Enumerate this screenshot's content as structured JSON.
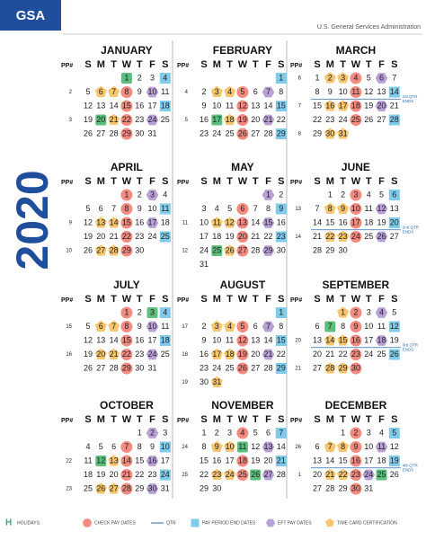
{
  "header": {
    "logo": "GSA",
    "agency": "U.S. General Services Administration",
    "year": "2020"
  },
  "column_headings": {
    "pp": "PP#",
    "weekdays": [
      "S",
      "M",
      "T",
      "W",
      "T",
      "F",
      "S"
    ]
  },
  "months": [
    {
      "name": "JANUARY",
      "weeks": [
        {
          "pp": null,
          "days": [
            null,
            null,
            null,
            1,
            2,
            3,
            4
          ]
        },
        {
          "pp": 2,
          "days": [
            5,
            6,
            7,
            8,
            9,
            10,
            11
          ]
        },
        {
          "pp": null,
          "days": [
            12,
            13,
            14,
            15,
            16,
            17,
            18
          ]
        },
        {
          "pp": 3,
          "days": [
            19,
            20,
            21,
            22,
            23,
            24,
            25
          ]
        },
        {
          "pp": null,
          "days": [
            26,
            27,
            28,
            29,
            30,
            31
          ]
        }
      ],
      "holidays": [
        1,
        20
      ],
      "check_pay": [
        8,
        15,
        22,
        29
      ],
      "pay_period_end": [
        4,
        18
      ],
      "eft_pay": [
        10,
        24
      ],
      "time_card": [
        6,
        7,
        21
      ]
    },
    {
      "name": "FEBRUARY",
      "weeks": [
        {
          "pp": null,
          "days": [
            null,
            null,
            null,
            null,
            null,
            null,
            1
          ]
        },
        {
          "pp": 4,
          "days": [
            2,
            3,
            4,
            5,
            6,
            7,
            8
          ]
        },
        {
          "pp": null,
          "days": [
            9,
            10,
            11,
            12,
            13,
            14,
            15
          ]
        },
        {
          "pp": 5,
          "days": [
            16,
            17,
            18,
            19,
            20,
            21,
            22
          ]
        },
        {
          "pp": null,
          "days": [
            23,
            24,
            25,
            26,
            27,
            28,
            29
          ]
        }
      ],
      "holidays": [
        17
      ],
      "check_pay": [
        5,
        12,
        19,
        26
      ],
      "pay_period_end": [
        1,
        15,
        29
      ],
      "eft_pay": [
        7,
        21
      ],
      "time_card": [
        3,
        4,
        18
      ]
    },
    {
      "name": "MARCH",
      "weeks": [
        {
          "pp": 6,
          "days": [
            1,
            2,
            3,
            4,
            5,
            6,
            7
          ]
        },
        {
          "pp": null,
          "days": [
            8,
            9,
            10,
            11,
            12,
            13,
            14
          ],
          "qtr": [
            "1st QTR",
            "ENDS"
          ]
        },
        {
          "pp": 7,
          "days": [
            15,
            16,
            17,
            18,
            19,
            20,
            21
          ]
        },
        {
          "pp": null,
          "days": [
            22,
            23,
            24,
            25,
            26,
            27,
            28
          ]
        },
        {
          "pp": 8,
          "days": [
            29,
            30,
            31
          ]
        }
      ],
      "holidays": [],
      "check_pay": [
        4,
        11,
        18,
        25
      ],
      "pay_period_end": [
        14,
        28
      ],
      "eft_pay": [
        6,
        20
      ],
      "time_card": [
        2,
        3,
        16,
        17,
        30,
        31
      ]
    },
    {
      "name": "APRIL",
      "weeks": [
        {
          "pp": null,
          "days": [
            null,
            null,
            null,
            1,
            2,
            3,
            4
          ]
        },
        {
          "pp": null,
          "days": [
            5,
            6,
            7,
            8,
            9,
            10,
            11
          ]
        },
        {
          "pp": 9,
          "days": [
            12,
            13,
            14,
            15,
            16,
            17,
            18
          ]
        },
        {
          "pp": null,
          "days": [
            19,
            20,
            21,
            22,
            23,
            24,
            25
          ]
        },
        {
          "pp": 10,
          "days": [
            26,
            27,
            28,
            29,
            30
          ]
        }
      ],
      "holidays": [],
      "check_pay": [
        1,
        8,
        15,
        22,
        29
      ],
      "pay_period_end": [
        11,
        25
      ],
      "eft_pay": [
        3,
        17
      ],
      "time_card": [
        13,
        14,
        27,
        28
      ]
    },
    {
      "name": "MAY",
      "weeks": [
        {
          "pp": null,
          "days": [
            null,
            null,
            null,
            null,
            null,
            1,
            2
          ]
        },
        {
          "pp": null,
          "days": [
            3,
            4,
            5,
            6,
            7,
            8,
            9
          ]
        },
        {
          "pp": 11,
          "days": [
            10,
            11,
            12,
            13,
            14,
            15,
            16
          ]
        },
        {
          "pp": null,
          "days": [
            17,
            18,
            19,
            20,
            21,
            22,
            23
          ]
        },
        {
          "pp": 12,
          "days": [
            24,
            25,
            26,
            27,
            28,
            29,
            30
          ]
        },
        {
          "pp": null,
          "days": [
            31
          ]
        }
      ],
      "holidays": [
        25
      ],
      "check_pay": [
        6,
        13,
        20,
        27
      ],
      "pay_period_end": [
        9,
        23
      ],
      "eft_pay": [
        1,
        15,
        29
      ],
      "time_card": [
        11,
        12,
        26
      ]
    },
    {
      "name": "JUNE",
      "weeks": [
        {
          "pp": null,
          "days": [
            null,
            1,
            2,
            3,
            4,
            5,
            6
          ]
        },
        {
          "pp": 13,
          "days": [
            7,
            8,
            9,
            10,
            11,
            12,
            13
          ]
        },
        {
          "pp": null,
          "days": [
            14,
            15,
            16,
            17,
            18,
            19,
            20
          ],
          "qtr": [
            "2nd QTR",
            "ENDS"
          ]
        },
        {
          "pp": 14,
          "days": [
            21,
            22,
            23,
            24,
            25,
            26,
            27
          ]
        },
        {
          "pp": null,
          "days": [
            28,
            29,
            30
          ]
        }
      ],
      "holidays": [],
      "check_pay": [
        3,
        10,
        17,
        24
      ],
      "pay_period_end": [
        6,
        20
      ],
      "eft_pay": [
        12,
        26
      ],
      "time_card": [
        8,
        9,
        22,
        23
      ]
    },
    {
      "name": "JULY",
      "weeks": [
        {
          "pp": null,
          "days": [
            null,
            null,
            null,
            1,
            2,
            3,
            4
          ]
        },
        {
          "pp": 15,
          "days": [
            5,
            6,
            7,
            8,
            9,
            10,
            11
          ]
        },
        {
          "pp": null,
          "days": [
            12,
            13,
            14,
            15,
            16,
            17,
            18
          ]
        },
        {
          "pp": 16,
          "days": [
            19,
            20,
            21,
            22,
            23,
            24,
            25
          ]
        },
        {
          "pp": null,
          "days": [
            26,
            27,
            28,
            29,
            30,
            31
          ]
        }
      ],
      "holidays": [
        3
      ],
      "check_pay": [
        1,
        8,
        15,
        22,
        29
      ],
      "pay_period_end": [
        4,
        18
      ],
      "eft_pay": [
        10,
        24
      ],
      "time_card": [
        6,
        7,
        20,
        21
      ]
    },
    {
      "name": "AUGUST",
      "weeks": [
        {
          "pp": null,
          "days": [
            null,
            null,
            null,
            null,
            null,
            null,
            1
          ]
        },
        {
          "pp": 17,
          "days": [
            2,
            3,
            4,
            5,
            6,
            7,
            8
          ]
        },
        {
          "pp": null,
          "days": [
            9,
            10,
            11,
            12,
            13,
            14,
            15
          ]
        },
        {
          "pp": 18,
          "days": [
            16,
            17,
            18,
            19,
            20,
            21,
            22
          ]
        },
        {
          "pp": null,
          "days": [
            23,
            24,
            25,
            26,
            27,
            28,
            29
          ]
        },
        {
          "pp": 19,
          "days": [
            30,
            31
          ]
        }
      ],
      "holidays": [],
      "check_pay": [
        5,
        12,
        19,
        26
      ],
      "pay_period_end": [
        1,
        15,
        29
      ],
      "eft_pay": [
        7,
        21
      ],
      "time_card": [
        3,
        4,
        17,
        18,
        31
      ]
    },
    {
      "name": "SEPTEMBER",
      "weeks": [
        {
          "pp": null,
          "days": [
            null,
            null,
            1,
            2,
            3,
            4,
            5
          ]
        },
        {
          "pp": null,
          "days": [
            6,
            7,
            8,
            9,
            10,
            11,
            12
          ]
        },
        {
          "pp": 20,
          "days": [
            13,
            14,
            15,
            16,
            17,
            18,
            19
          ],
          "qtr": [
            "3rd QTR",
            "ENDS"
          ]
        },
        {
          "pp": null,
          "days": [
            20,
            21,
            22,
            23,
            24,
            25,
            26
          ]
        },
        {
          "pp": 21,
          "days": [
            27,
            28,
            29,
            30
          ]
        }
      ],
      "holidays": [
        7
      ],
      "check_pay": [
        2,
        9,
        16,
        23,
        30
      ],
      "pay_period_end": [
        12,
        26
      ],
      "eft_pay": [
        4,
        18
      ],
      "time_card": [
        1,
        14,
        15,
        28,
        29
      ]
    },
    {
      "name": "OCTOBER",
      "weeks": [
        {
          "pp": null,
          "days": [
            null,
            null,
            null,
            null,
            1,
            2,
            3
          ]
        },
        {
          "pp": null,
          "days": [
            4,
            5,
            6,
            7,
            8,
            9,
            10
          ]
        },
        {
          "pp": 22,
          "days": [
            11,
            12,
            13,
            14,
            15,
            16,
            17
          ]
        },
        {
          "pp": null,
          "days": [
            18,
            19,
            20,
            21,
            22,
            23,
            24
          ]
        },
        {
          "pp": 23,
          "days": [
            25,
            26,
            27,
            28,
            29,
            30,
            31
          ]
        }
      ],
      "holidays": [
        12
      ],
      "check_pay": [
        7,
        14,
        21,
        28
      ],
      "pay_period_end": [
        10,
        24
      ],
      "eft_pay": [
        2,
        16,
        30
      ],
      "time_card": [
        13,
        26,
        27
      ]
    },
    {
      "name": "NOVEMBER",
      "weeks": [
        {
          "pp": null,
          "days": [
            1,
            2,
            3,
            4,
            5,
            6,
            7
          ]
        },
        {
          "pp": 24,
          "days": [
            8,
            9,
            10,
            11,
            12,
            13,
            14
          ]
        },
        {
          "pp": null,
          "days": [
            15,
            16,
            17,
            18,
            19,
            20,
            21
          ]
        },
        {
          "pp": 25,
          "days": [
            22,
            23,
            24,
            25,
            26,
            27,
            28
          ]
        },
        {
          "pp": null,
          "days": [
            29,
            30
          ]
        }
      ],
      "holidays": [
        11,
        26
      ],
      "check_pay": [
        4,
        18,
        25
      ],
      "pay_period_end": [
        7,
        21
      ],
      "eft_pay": [
        13,
        27
      ],
      "time_card": [
        9,
        10,
        23,
        24
      ]
    },
    {
      "name": "DECEMBER",
      "weeks": [
        {
          "pp": null,
          "days": [
            null,
            null,
            1,
            2,
            3,
            4,
            5
          ]
        },
        {
          "pp": 26,
          "days": [
            6,
            7,
            8,
            9,
            10,
            11,
            12
          ]
        },
        {
          "pp": null,
          "days": [
            13,
            14,
            15,
            16,
            17,
            18,
            19
          ],
          "qtr": [
            "4th QTR",
            "ENDS"
          ]
        },
        {
          "pp": 1,
          "days": [
            20,
            21,
            22,
            23,
            24,
            25,
            26
          ]
        },
        {
          "pp": null,
          "days": [
            27,
            28,
            29,
            30,
            31
          ]
        }
      ],
      "holidays": [
        25
      ],
      "check_pay": [
        2,
        9,
        16,
        23,
        30
      ],
      "pay_period_end": [
        5,
        19
      ],
      "eft_pay": [
        11,
        24
      ],
      "time_card": [
        7,
        8,
        21,
        22
      ]
    }
  ],
  "legend": [
    {
      "kind": "holidays",
      "icon": "H",
      "label": "HOLIDAYS"
    },
    {
      "kind": "check_pay",
      "label": "CHECK PAY DATES"
    },
    {
      "kind": "qtr",
      "label": "QTR"
    },
    {
      "kind": "pay_period_end",
      "label": "PAY PERIOD END DATES"
    },
    {
      "kind": "eft_pay",
      "label": "EFT PAY DATES"
    },
    {
      "kind": "time_card",
      "label": "TIME CARD CERTIFICATION"
    }
  ]
}
